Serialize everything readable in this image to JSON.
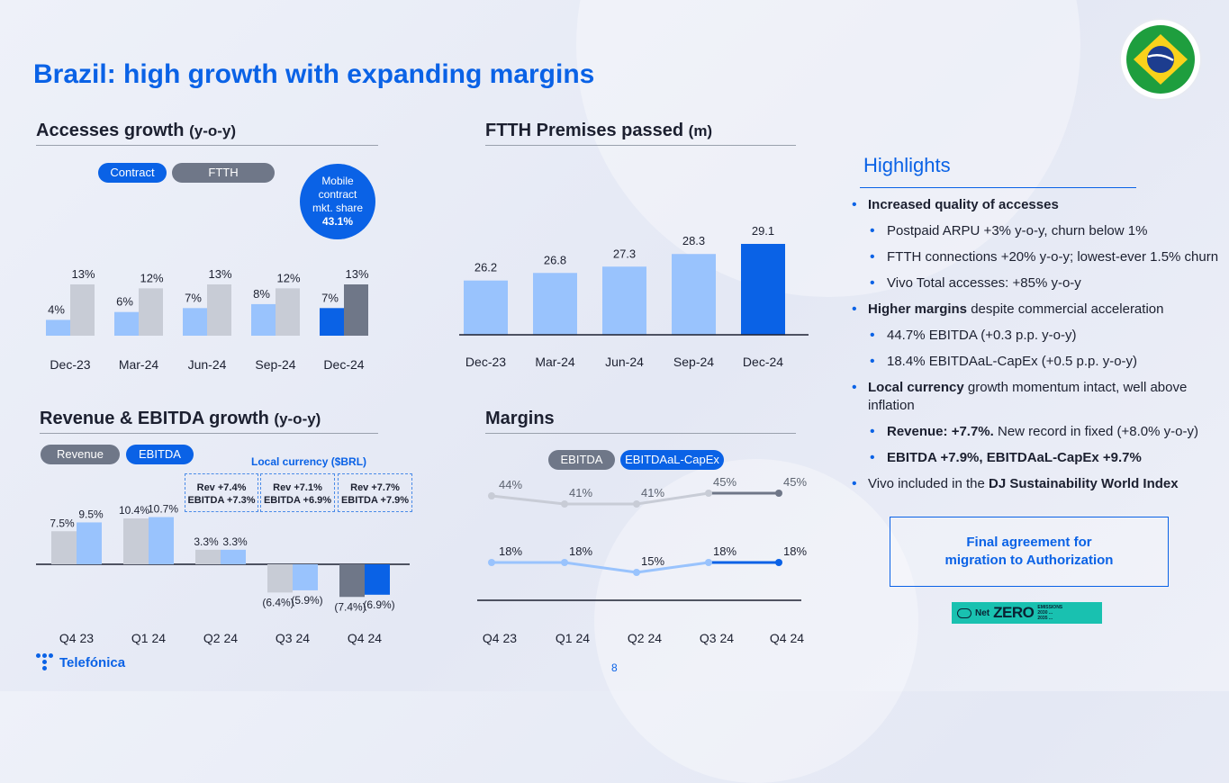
{
  "page": {
    "title": "Brazil: high growth with expanding margins",
    "page_number": "8",
    "logo_text": "Telefónica",
    "colors": {
      "accent": "#0a62e6",
      "light_blue": "#99c3fd",
      "grey": "#c8ccd6",
      "dark_grey": "#6f7788",
      "net_zero": "#19c1b0"
    }
  },
  "sections": {
    "accesses": {
      "title": "Accesses growth",
      "title_sub": "(y-o-y)",
      "legend": [
        "Contract",
        "FTTH"
      ]
    },
    "mobile_share": {
      "line1": "Mobile",
      "line2": "contract",
      "line3": "mkt. share",
      "value": "43.1%"
    },
    "ftth": {
      "title": "FTTH Premises passed",
      "title_sub": "(m)"
    },
    "revenue": {
      "title": "Revenue & EBITDA growth",
      "title_sub": "(y-o-y)",
      "legend": [
        "Revenue",
        "EBITDA"
      ],
      "local_currency_label": "Local currency ($BRL)",
      "notes": [
        {
          "rev": "Rev +7.4%",
          "ebitda": "EBITDA +7.3%"
        },
        {
          "rev": "Rev +7.1%",
          "ebitda": "EBITDA +6.9%"
        },
        {
          "rev": "Rev +7.7%",
          "ebitda": "EBITDA +7.9%"
        }
      ]
    },
    "margins": {
      "title": "Margins",
      "legend": [
        "EBITDA",
        "EBITDAaL-CapEx"
      ]
    }
  },
  "highlights": {
    "title": "Highlights",
    "items": [
      {
        "level": 1,
        "bold": "Increased quality of accesses",
        "text": ""
      },
      {
        "level": 2,
        "bold": "",
        "text": "Postpaid ARPU +3% y-o-y, churn below 1%"
      },
      {
        "level": 2,
        "bold": "",
        "text": "FTTH connections +20% y-o-y; lowest-ever 1.5% churn"
      },
      {
        "level": 2,
        "bold": "",
        "text": "Vivo Total accesses: +85% y-o-y"
      },
      {
        "level": 1,
        "bold": "Higher margins",
        "text": " despite commercial acceleration"
      },
      {
        "level": 2,
        "bold": "",
        "text": " 44.7% EBITDA (+0.3 p.p. y-o-y)"
      },
      {
        "level": 2,
        "bold": "",
        "text": "18.4% EBITDAaL-CapEx (+0.5 p.p. y-o-y)"
      },
      {
        "level": 1,
        "bold": "Local currency",
        "text": " growth momentum intact, well above inflation"
      },
      {
        "level": 2,
        "bold": "Revenue: +7.7%.",
        "text": " New record in fixed (+8.0% y-o-y)"
      },
      {
        "level": 2,
        "bold": "EBITDA +7.9%, EBITDAaL-CapEx +9.7%",
        "text": ""
      },
      {
        "level": 1,
        "bold": "",
        "text": "Vivo included  in the ",
        "bold_after": "DJ Sustainability World Index"
      }
    ]
  },
  "final_box": {
    "line1": "Final agreement for",
    "line2": "migration to Authorization"
  },
  "net_zero": {
    "net": "Net",
    "zero": "ZERO",
    "emissions": "EMISSIONS",
    "line1": "2030 ...",
    "line2": "2035 ..."
  },
  "chart_data": [
    {
      "type": "bar",
      "id": "accesses",
      "categories": [
        "Dec-23",
        "Mar-24",
        "Jun-24",
        "Sep-24",
        "Dec-24"
      ],
      "series": [
        {
          "name": "Contract",
          "values": [
            4,
            6,
            7,
            8,
            7
          ],
          "labels": [
            "4%",
            "6%",
            "7%",
            "8%",
            "7%"
          ],
          "color": "#99c3fd",
          "highlight_last": "#0a62e6"
        },
        {
          "name": "FTTH",
          "values": [
            13,
            12,
            13,
            12,
            13
          ],
          "labels": [
            "13%",
            "12%",
            "13%",
            "12%",
            "13%"
          ],
          "color": "#c8ccd6",
          "highlight_last": "#6f7788"
        }
      ],
      "ylim": [
        0,
        14
      ]
    },
    {
      "type": "bar",
      "id": "ftth",
      "categories": [
        "Dec-23",
        "Mar-24",
        "Jun-24",
        "Sep-24",
        "Dec-24"
      ],
      "values": [
        26.2,
        26.8,
        27.3,
        28.3,
        29.1
      ],
      "labels": [
        "26.2",
        "26.8",
        "27.3",
        "28.3",
        "29.1"
      ],
      "color": "#99c3fd",
      "highlight_last": "#0a62e6",
      "ylim": [
        21.9,
        29.1
      ]
    },
    {
      "type": "bar",
      "id": "revenue",
      "categories": [
        "Q4 23",
        "Q1 24",
        "Q2 24",
        "Q3 24",
        "Q4 24"
      ],
      "series": [
        {
          "name": "Revenue",
          "values": [
            7.5,
            10.4,
            3.3,
            -6.4,
            -7.4
          ],
          "labels": [
            "7.5%",
            "10.4%",
            "3.3%",
            "(6.4%)",
            "(7.4%)"
          ],
          "color": "#c8ccd6",
          "highlight_last": "#6f7788"
        },
        {
          "name": "EBITDA",
          "values": [
            9.5,
            10.7,
            3.3,
            -5.9,
            -6.9
          ],
          "labels": [
            "9.5%",
            "10.7%",
            "3.3%",
            "(5.9%)",
            "(6.9%)"
          ],
          "color": "#99c3fd",
          "highlight_last": "#0a62e6"
        }
      ],
      "ylim": [
        -8,
        11
      ]
    },
    {
      "type": "line",
      "id": "margins",
      "categories": [
        "Q4 23",
        "Q1 24",
        "Q2 24",
        "Q3 24",
        "Q4 24"
      ],
      "series": [
        {
          "name": "EBITDA",
          "values": [
            44,
            41,
            41,
            45,
            45
          ],
          "labels": [
            "44%",
            "41%",
            "41%",
            "45%",
            "45%"
          ],
          "color": "#c8ccd6",
          "highlight_last": "#6f7788"
        },
        {
          "name": "EBITDAaL-CapEx",
          "values": [
            18,
            18,
            15,
            18,
            18
          ],
          "labels": [
            "18%",
            "18%",
            "15%",
            "18%",
            "18%"
          ],
          "color": "#99c3fd",
          "highlight_last": "#0a62e6"
        }
      ]
    }
  ]
}
